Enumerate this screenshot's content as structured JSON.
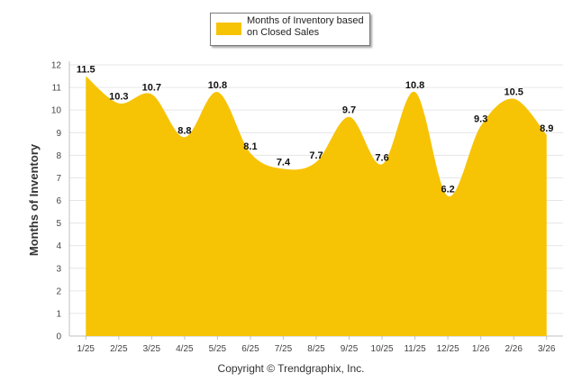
{
  "chart_data": {
    "type": "area",
    "categories": [
      "1/25",
      "2/25",
      "3/25",
      "4/25",
      "5/25",
      "6/25",
      "7/25",
      "8/25",
      "9/25",
      "10/25",
      "11/25",
      "12/25",
      "1/26",
      "2/26",
      "3/26"
    ],
    "series": [
      {
        "name": "Months of Inventory based on Closed Sales",
        "values": [
          11.5,
          10.3,
          10.7,
          8.8,
          10.8,
          8.1,
          7.4,
          7.7,
          9.7,
          7.6,
          10.8,
          6.2,
          9.3,
          10.5,
          8.9
        ]
      }
    ],
    "ylabel": "Months of Inventory",
    "xlabel": "",
    "ylim": [
      0,
      12
    ],
    "yticks": [
      0,
      1,
      2,
      3,
      4,
      5,
      6,
      7,
      8,
      9,
      10,
      11,
      12
    ],
    "grid": true,
    "legend_position": "top-center",
    "data_labels": true,
    "fill_color": "#F7C305",
    "credit": "Copyright © Trendgraphix, Inc."
  }
}
